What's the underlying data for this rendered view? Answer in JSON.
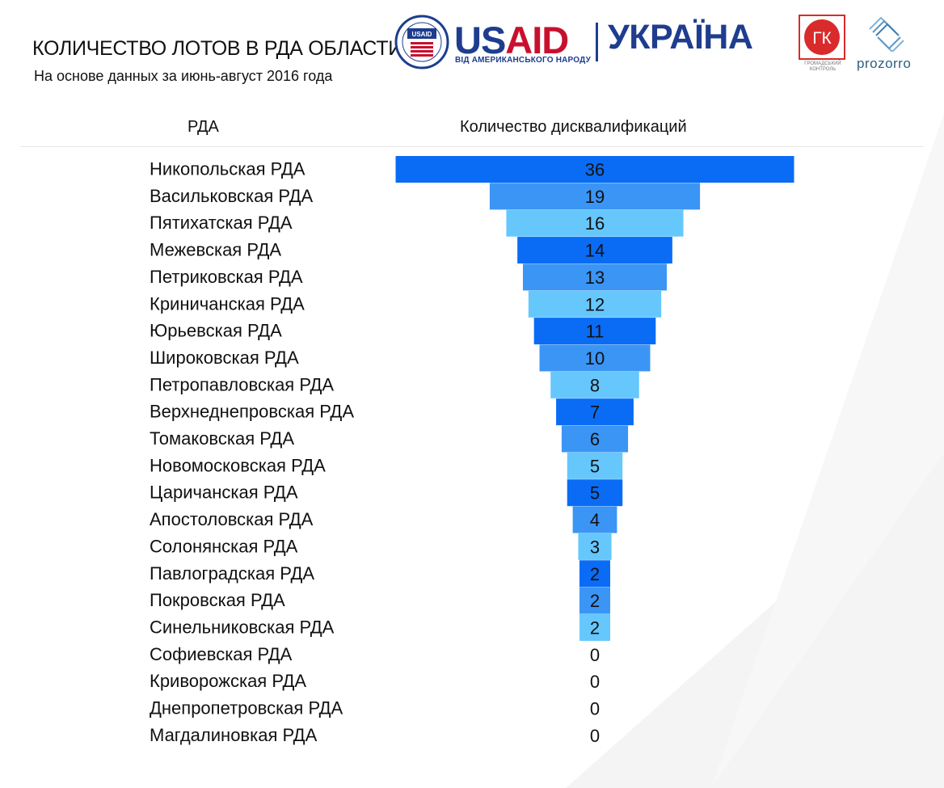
{
  "title": "КОЛИЧЕСТВО ЛОТОВ В РДА ОБЛАСТИ",
  "subtitle": "На основе данных за июнь-август 2016 года",
  "logos": {
    "usaid_badge": "USAID",
    "usaid_word_part1": "US",
    "usaid_word_part2": "AID",
    "usaid_tagline": "ВІД АМЕРИКАНСЬКОГО НАРОДУ",
    "ukraine": "УКРАЇНА",
    "gk_letters": "ГК",
    "gk_caption": "ГРОМАДСЬКИЙ КОНТРОЛЬ",
    "prozorro": "prozorro"
  },
  "colors": {
    "bar_dark": "#0a6cf5",
    "bar_mid": "#3b95f5",
    "bar_light": "#66c7fd",
    "usaid_blue": "#1e3d8f",
    "usaid_red": "#c8102e",
    "gk_red": "#d92b2b"
  },
  "chart_data": {
    "type": "bar",
    "orientation": "horizontal-centered",
    "column_headers": [
      "РДА",
      "Количество дисквалификаций"
    ],
    "categories": [
      "Никопольская РДА",
      "Васильковская РДА",
      "Пятихатская РДА",
      "Межевская РДА",
      "Петриковская РДА",
      "Криничанская РДА",
      "Юрьевская РДА",
      "Широковская РДА",
      "Петропавловская РДА",
      "Верхнеднепровская РДА",
      "Томаковская РДА",
      "Новомосковская РДА",
      "Царичанская РДА",
      "Апостоловская РДА",
      "Солонянская РДА",
      "Павлоградская РДА",
      "Покровская РДА",
      "Синельниковская РДА",
      "Софиевская РДА",
      "Криворожская РДА",
      "Днепропетровская РДА",
      "Магдалиновкая РДА"
    ],
    "values": [
      36,
      19,
      16,
      14,
      13,
      12,
      11,
      10,
      8,
      7,
      6,
      5,
      5,
      4,
      3,
      2,
      2,
      2,
      0,
      0,
      0,
      0
    ],
    "color_cycle": [
      "dark",
      "mid",
      "light"
    ],
    "grid": false,
    "legend": "none"
  }
}
